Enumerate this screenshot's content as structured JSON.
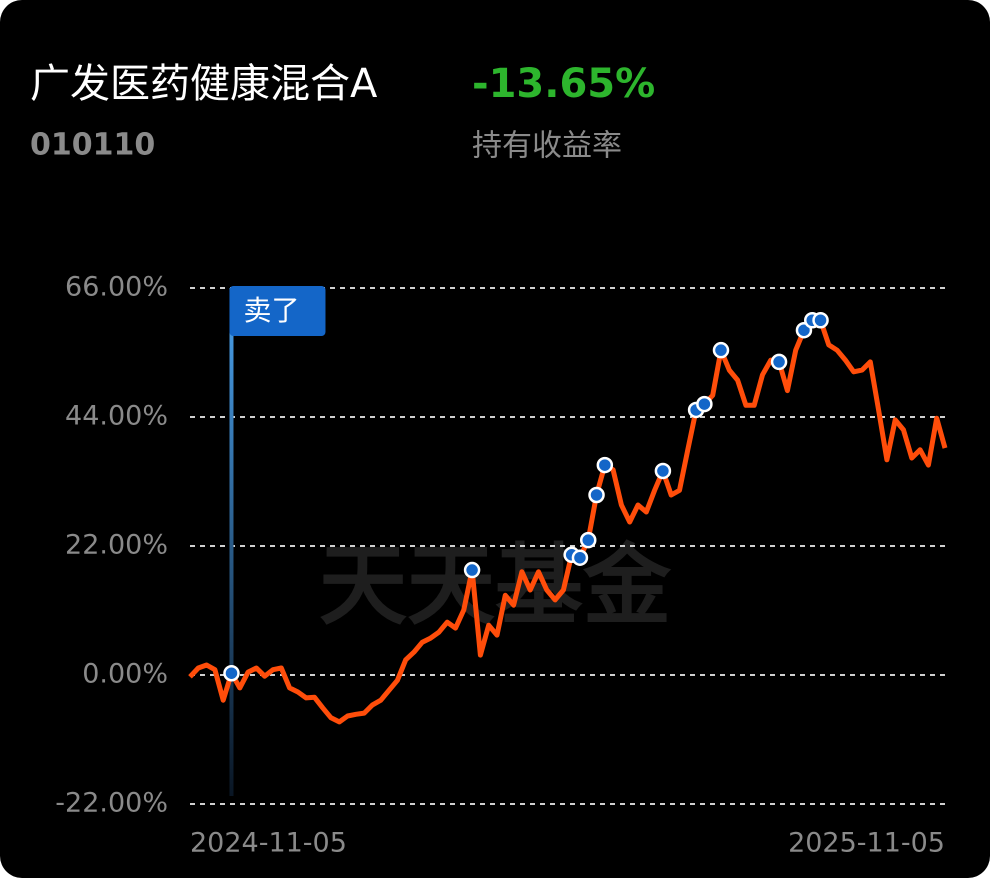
{
  "header": {
    "title": "广发医药健康混合A",
    "code": "010110",
    "return_value": "-13.65%",
    "return_label": "持有收益率"
  },
  "chart_data": {
    "type": "line",
    "watermark": "天天基金",
    "categories": [
      "2024-11-05",
      null,
      null,
      null,
      null,
      null,
      null,
      null,
      null,
      null,
      null,
      null,
      null,
      null,
      null,
      null,
      null,
      null,
      null,
      null,
      null,
      null,
      null,
      null,
      null,
      null,
      null,
      null,
      null,
      null,
      null,
      null,
      null,
      null,
      null,
      null,
      null,
      null,
      null,
      null,
      null,
      null,
      null,
      null,
      null,
      null,
      null,
      null,
      null,
      null,
      null,
      null,
      null,
      null,
      null,
      null,
      null,
      null,
      null,
      null,
      null,
      null,
      null,
      null,
      null,
      null,
      null,
      null,
      null,
      null,
      null,
      null,
      null,
      null,
      null,
      null,
      null,
      null,
      null,
      null,
      null,
      null,
      null,
      null,
      null,
      null,
      null,
      null,
      null,
      null,
      null,
      "2025-11-05"
    ],
    "series": [
      {
        "color": "#ff4d0a",
        "values": [
          -0.3,
          1.2,
          1.7,
          0.9,
          -4.3,
          0.3,
          -2.2,
          0.5,
          1.2,
          -0.2,
          0.9,
          1.2,
          -2.2,
          -2.9,
          -3.9,
          -3.8,
          -5.6,
          -7.3,
          -8.0,
          -7.0,
          -6.7,
          -6.5,
          -5.1,
          -4.3,
          -2.6,
          -0.9,
          2.6,
          3.9,
          5.6,
          6.3,
          7.3,
          9.0,
          8.0,
          11.1,
          17.9,
          3.4,
          8.5,
          6.8,
          13.6,
          11.9,
          17.6,
          14.5,
          17.6,
          14.5,
          12.8,
          14.5,
          20.5,
          20.0,
          23.0,
          30.7,
          35.8,
          35.0,
          29.0,
          26.1,
          29.0,
          27.8,
          31.5,
          34.8,
          30.7,
          31.5,
          38.4,
          45.2,
          46.2,
          47.7,
          55.4,
          52.0,
          50.3,
          46.0,
          46.0,
          51.2,
          53.7,
          53.4,
          48.5,
          55.4,
          58.8,
          60.5,
          60.5,
          56.3,
          55.4,
          53.7,
          51.7,
          52.0,
          53.4,
          45.2,
          36.7,
          43.5,
          41.8,
          37.0,
          38.4,
          35.8,
          43.8,
          38.7
        ],
        "markers": [
          34,
          46,
          47,
          48,
          49,
          50,
          57,
          61,
          62,
          64,
          71,
          74,
          75,
          76
        ]
      }
    ],
    "sell_marker": {
      "label": "卖了",
      "index": 5
    },
    "ylim": [
      -22,
      66
    ],
    "yticks": [
      {
        "value": -22,
        "label": "-22.00%"
      },
      {
        "value": 0,
        "label": "0.00%"
      },
      {
        "value": 22,
        "label": "22.00%"
      },
      {
        "value": 44,
        "label": "44.00%"
      },
      {
        "value": 66,
        "label": "66.00%"
      }
    ],
    "grid": true
  }
}
